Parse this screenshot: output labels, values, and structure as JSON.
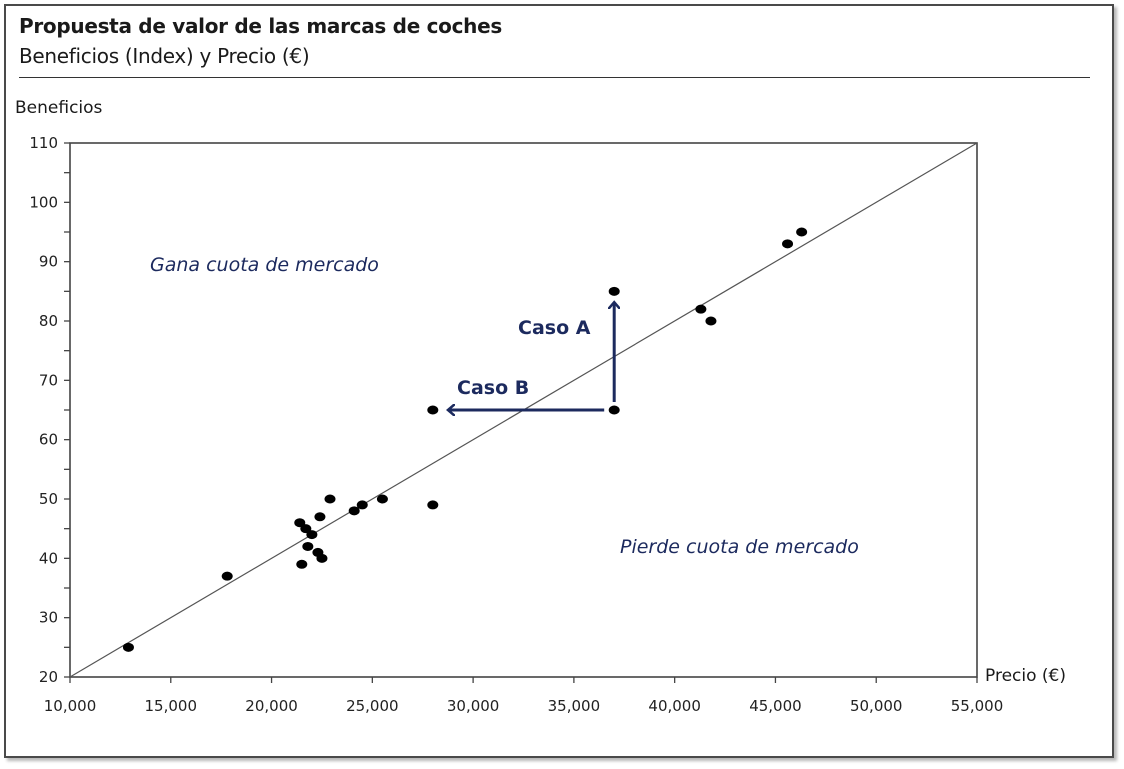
{
  "header": {
    "title": "Propuesta de valor de las marcas de coches",
    "subtitle": "Beneficios (Index) y Precio (€)"
  },
  "axes": {
    "ylabel": "Beneficios",
    "xlabel": "Precio (€)"
  },
  "annotations": {
    "upper_region": "Gana cuota de mercado",
    "lower_region": "Pierde cuota de mercado",
    "caso_a": "Caso A",
    "caso_b": "Caso B"
  },
  "colors": {
    "annotation": "#1c2a5e",
    "points": "#000000",
    "diagonal": "#555555",
    "axes": "#333333"
  },
  "chart_data": {
    "type": "scatter",
    "title": "Propuesta de valor de las marcas de coches",
    "subtitle": "Beneficios (Index) y Precio (€)",
    "xlabel": "Precio (€)",
    "ylabel": "Beneficios",
    "xlim": [
      10000,
      55000
    ],
    "ylim": [
      20,
      110
    ],
    "x_ticks": [
      10000,
      15000,
      20000,
      25000,
      30000,
      35000,
      40000,
      45000,
      50000,
      55000
    ],
    "x_tick_labels": [
      "10,000",
      "15,000",
      "20,000",
      "25,000",
      "30,000",
      "35,000",
      "40,000",
      "45,000",
      "50,000",
      "55,000"
    ],
    "y_ticks": [
      20,
      30,
      40,
      50,
      60,
      70,
      80,
      90,
      100,
      110
    ],
    "y_tick_labels": [
      "20",
      "30",
      "40",
      "50",
      "60",
      "70",
      "80",
      "90",
      "100",
      "110"
    ],
    "y_minor_step": 5,
    "grid": false,
    "legend": null,
    "reference_line": {
      "from": [
        10000,
        20
      ],
      "to": [
        55000,
        110
      ],
      "label": "value line"
    },
    "series": [
      {
        "name": "Marcas",
        "points": [
          {
            "x": 12900,
            "y": 25
          },
          {
            "x": 17800,
            "y": 37
          },
          {
            "x": 21400,
            "y": 46
          },
          {
            "x": 21700,
            "y": 45
          },
          {
            "x": 22000,
            "y": 44
          },
          {
            "x": 21800,
            "y": 42
          },
          {
            "x": 22300,
            "y": 41
          },
          {
            "x": 22500,
            "y": 40
          },
          {
            "x": 21500,
            "y": 39
          },
          {
            "x": 22400,
            "y": 47
          },
          {
            "x": 22900,
            "y": 50
          },
          {
            "x": 24100,
            "y": 48
          },
          {
            "x": 24500,
            "y": 49
          },
          {
            "x": 25500,
            "y": 50
          },
          {
            "x": 28000,
            "y": 49
          },
          {
            "x": 28000,
            "y": 65
          },
          {
            "x": 37000,
            "y": 65
          },
          {
            "x": 37000,
            "y": 85
          },
          {
            "x": 41300,
            "y": 82
          },
          {
            "x": 41800,
            "y": 80
          },
          {
            "x": 45600,
            "y": 93
          },
          {
            "x": 46300,
            "y": 95
          }
        ]
      }
    ],
    "annotations": [
      {
        "text": "Gana cuota de mercado",
        "x": 18000,
        "y": 90
      },
      {
        "text": "Pierde cuota de mercado",
        "x": 40000,
        "y": 42
      },
      {
        "text": "Caso A",
        "type": "arrow",
        "from": [
          37000,
          65
        ],
        "to": [
          37000,
          83
        ]
      },
      {
        "text": "Caso B",
        "type": "arrow",
        "from": [
          37000,
          65
        ],
        "to": [
          28800,
          65
        ]
      }
    ]
  }
}
